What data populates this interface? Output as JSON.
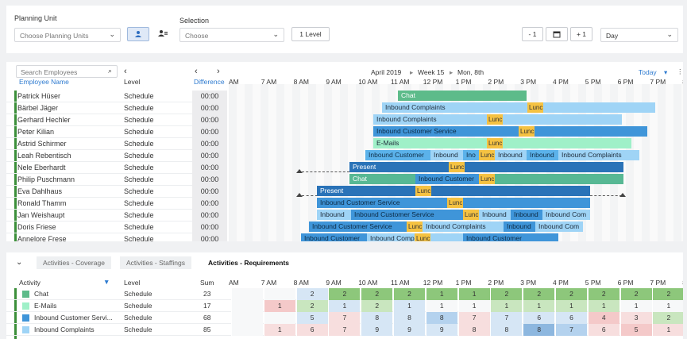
{
  "toolbar": {
    "planning_unit_label": "Planning Unit",
    "planning_unit_placeholder": "Choose Planning Units",
    "selection_label": "Selection",
    "selection_placeholder": "Choose",
    "level_button": "1 Level",
    "prev_button": "- 1",
    "next_button": "+ 1",
    "view_select": "Day"
  },
  "grid": {
    "search_placeholder": "Search Employees",
    "col_name": "Employee Name",
    "col_level": "Level",
    "col_diff": "Difference",
    "date_header": "April 2019",
    "week_header": "Week 15",
    "day_header": "Mon, 8th",
    "today_button": "Today",
    "time_ticks": [
      "AM",
      "7 AM",
      "8 AM",
      "9 AM",
      "10 AM",
      "11 AM",
      "12 PM",
      "1 PM",
      "2 PM",
      "3 PM",
      "4 PM",
      "5 PM",
      "6 PM",
      "7 PM",
      "8 P"
    ],
    "employees": [
      {
        "name": "Patrick Hüser",
        "level": "Schedule",
        "diff": "00:00"
      },
      {
        "name": "Bärbel Jäger",
        "level": "Schedule",
        "diff": "00:00"
      },
      {
        "name": "Gerhard Hechler",
        "level": "Schedule",
        "diff": "00:00"
      },
      {
        "name": "Peter Kilian",
        "level": "Schedule",
        "diff": "00:00"
      },
      {
        "name": "Astrid Schirmer",
        "level": "Schedule",
        "diff": "00:00"
      },
      {
        "name": "Leah Rebentisch",
        "level": "Schedule",
        "diff": "00:00"
      },
      {
        "name": "Nele Eberhardt",
        "level": "Schedule",
        "diff": "00:00"
      },
      {
        "name": "Philip Puschmann",
        "level": "Schedule",
        "diff": "00:00"
      },
      {
        "name": "Eva Dahlhaus",
        "level": "Schedule",
        "diff": "00:00"
      },
      {
        "name": "Ronald Thamm",
        "level": "Schedule",
        "diff": "00:00"
      },
      {
        "name": "Jan Weishaupt",
        "level": "Schedule",
        "diff": "00:00"
      },
      {
        "name": "Doris Friese",
        "level": "Schedule",
        "diff": "00:00"
      },
      {
        "name": "Annelore Frese",
        "level": "Schedule",
        "diff": "00:00"
      }
    ],
    "bar_labels": {
      "chat": "Chat",
      "inbound_complaints": "Inbound Complaints",
      "inbound_customer_service": "Inbound Customer Service",
      "inbound_customer": "Inbound Customer",
      "inbound": "Inbound",
      "inbound_com": "Inbound Com",
      "inbound_compl": "Inbound Compl",
      "ino": "Ino",
      "emails": "E-Mails",
      "present": "Present",
      "lunch": "Lunc"
    }
  },
  "bottom": {
    "tabs": [
      "Activities - Coverage",
      "Activities - Staffings",
      "Activities - Requirements"
    ],
    "col_activity": "Activity",
    "col_level": "Level",
    "col_sum": "Sum",
    "time_ticks": [
      "AM",
      "7 AM",
      "8 AM",
      "9 AM",
      "10 AM",
      "11 AM",
      "12 PM",
      "1 PM",
      "2 PM",
      "3 PM",
      "4 PM",
      "5 PM",
      "6 PM",
      "7 PM",
      "8 P"
    ],
    "activities": [
      {
        "name": "Chat",
        "level": "Schedule",
        "sum": "23",
        "color": "#5dbb8a",
        "values": [
          "",
          "",
          "2",
          "2",
          "2",
          "2",
          "1",
          "1",
          "2",
          "2",
          "2",
          "2",
          "2",
          "2"
        ]
      },
      {
        "name": "E-Mails",
        "level": "Schedule",
        "sum": "17",
        "color": "#9ff0c8",
        "values": [
          "",
          "1",
          "2",
          "1",
          "2",
          "1",
          "1",
          "1",
          "1",
          "1",
          "1",
          "1",
          "1",
          "1"
        ]
      },
      {
        "name": "Inbound Customer Servi...",
        "level": "Schedule",
        "sum": "68",
        "color": "#3f95d9",
        "values": [
          "",
          "",
          "5",
          "7",
          "8",
          "8",
          "8",
          "7",
          "7",
          "6",
          "6",
          "4",
          "3",
          "2"
        ]
      },
      {
        "name": "Inbound Complaints",
        "level": "Schedule",
        "sum": "85",
        "color": "#9fd4f6",
        "values": [
          "",
          "1",
          "6",
          "7",
          "9",
          "9",
          "9",
          "8",
          "8",
          "8",
          "7",
          "6",
          "5",
          "1"
        ]
      }
    ]
  }
}
